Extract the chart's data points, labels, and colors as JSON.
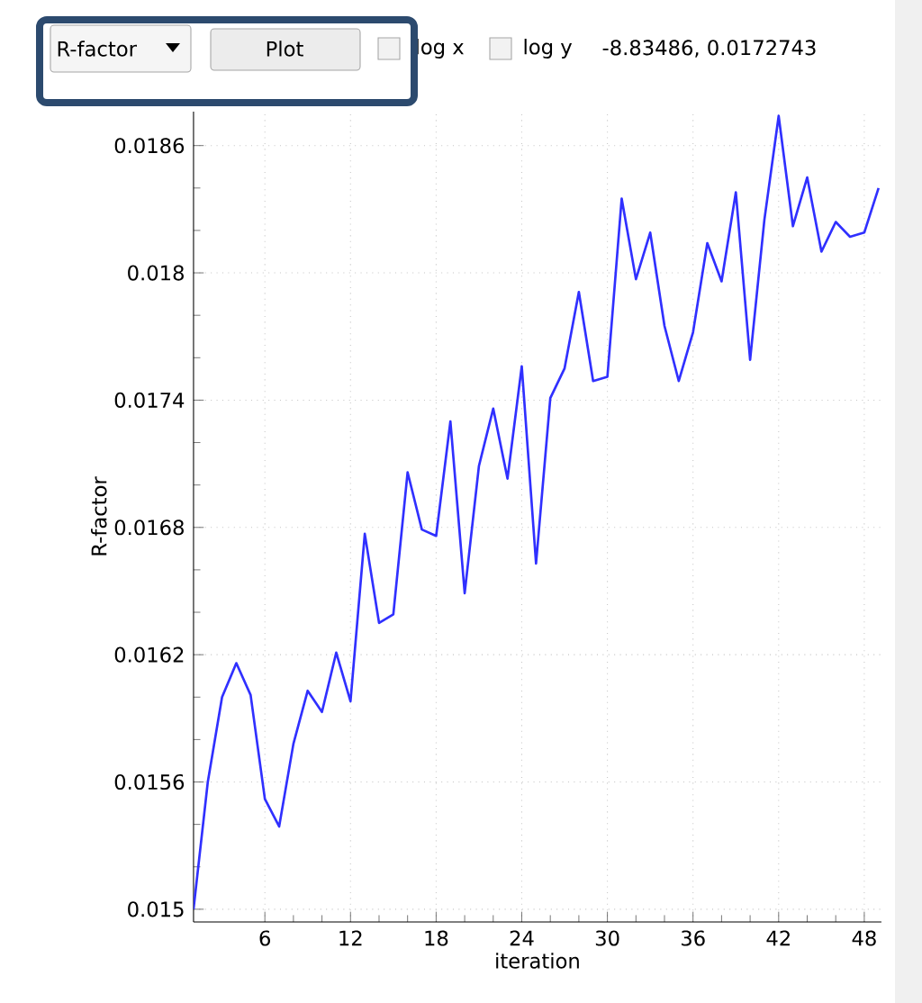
{
  "chart_data": {
    "type": "line",
    "xlabel": "iteration",
    "ylabel": "R-factor",
    "annotations": [
      "R-factor",
      "Plot",
      "log x",
      "log y",
      "-8.83486, 0.0172743"
    ],
    "x": [
      1,
      2,
      3,
      4,
      5,
      6,
      7,
      8,
      9,
      10,
      11,
      12,
      13,
      14,
      15,
      16,
      17,
      18,
      19,
      20,
      21,
      22,
      23,
      24,
      25,
      26,
      27,
      28,
      29,
      30,
      31,
      32,
      33,
      34,
      35,
      36,
      37,
      38,
      39,
      40,
      41,
      42,
      43,
      44,
      45,
      46,
      47,
      48,
      49
    ],
    "series": [
      {
        "color": "#3030ff",
        "values": [
          0.015,
          0.0156,
          0.016,
          0.01616,
          0.01601,
          0.01552,
          0.01539,
          0.01578,
          0.01603,
          0.01593,
          0.01621,
          0.01598,
          0.01677,
          0.01635,
          0.01639,
          0.01706,
          0.01679,
          0.01676,
          0.0173,
          0.01649,
          0.01709,
          0.01736,
          0.01703,
          0.01756,
          0.01663,
          0.01741,
          0.01755,
          0.01791,
          0.01749,
          0.01751,
          0.01835,
          0.01797,
          0.01819,
          0.01775,
          0.01749,
          0.01772,
          0.01814,
          0.01796,
          0.01838,
          0.01759,
          0.01825,
          0.01874,
          0.01822,
          0.01845,
          0.0181,
          0.01824,
          0.01817,
          0.01819,
          0.0184
        ]
      }
    ],
    "xlim": [
      1,
      49.2
    ],
    "ylim": [
      0.01494,
      0.01876
    ],
    "xticks": [
      6,
      12,
      18,
      24,
      30,
      36,
      42,
      48
    ],
    "yticks": [
      {
        "value": 0.015,
        "label": "0.015"
      },
      {
        "value": 0.0156,
        "label": "0.0156"
      },
      {
        "value": 0.0162,
        "label": "0.0162"
      },
      {
        "value": 0.0168,
        "label": "0.0168"
      },
      {
        "value": 0.0174,
        "label": "0.0174"
      },
      {
        "value": 0.018,
        "label": "0.018"
      },
      {
        "value": 0.0186,
        "label": "0.0186"
      }
    ],
    "grid": true,
    "marker": "none",
    "line_style": "solid"
  }
}
